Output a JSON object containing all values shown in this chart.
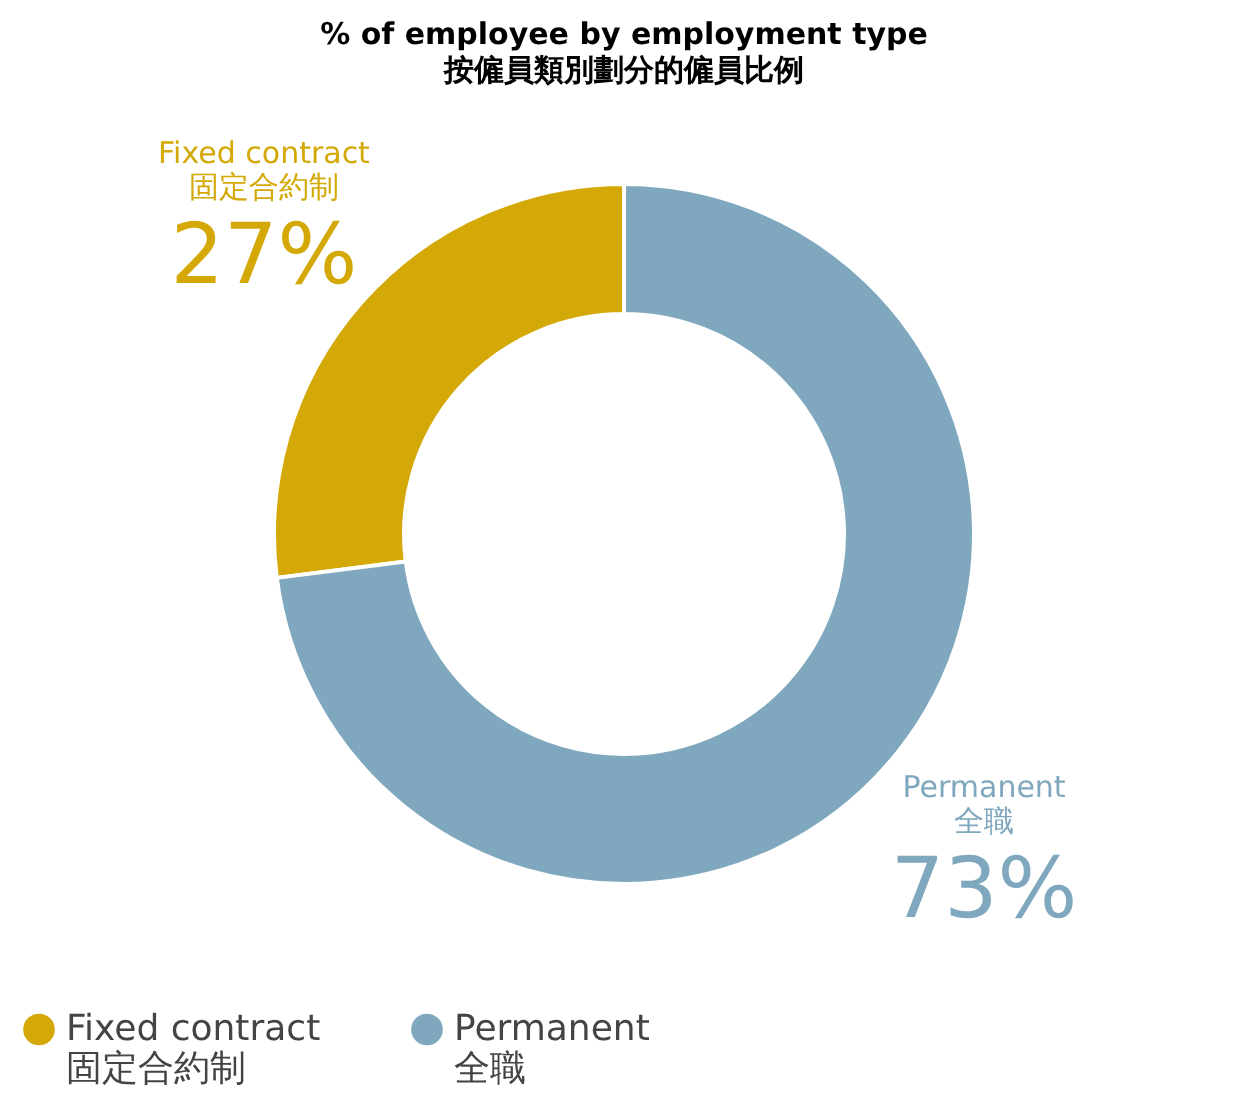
{
  "chart_data": {
    "type": "donut",
    "title": "% of employee by employment type",
    "subtitle": "按僱員類別劃分的僱員比例",
    "categories": [
      "Fixed contract\n固定合約制",
      "Permanent\n全職"
    ],
    "values": [
      27,
      73
    ],
    "colors": [
      "#d4a806",
      "#7fa7bd"
    ],
    "value_labels": [
      "27%",
      "73%"
    ],
    "legend": "bottom"
  }
}
